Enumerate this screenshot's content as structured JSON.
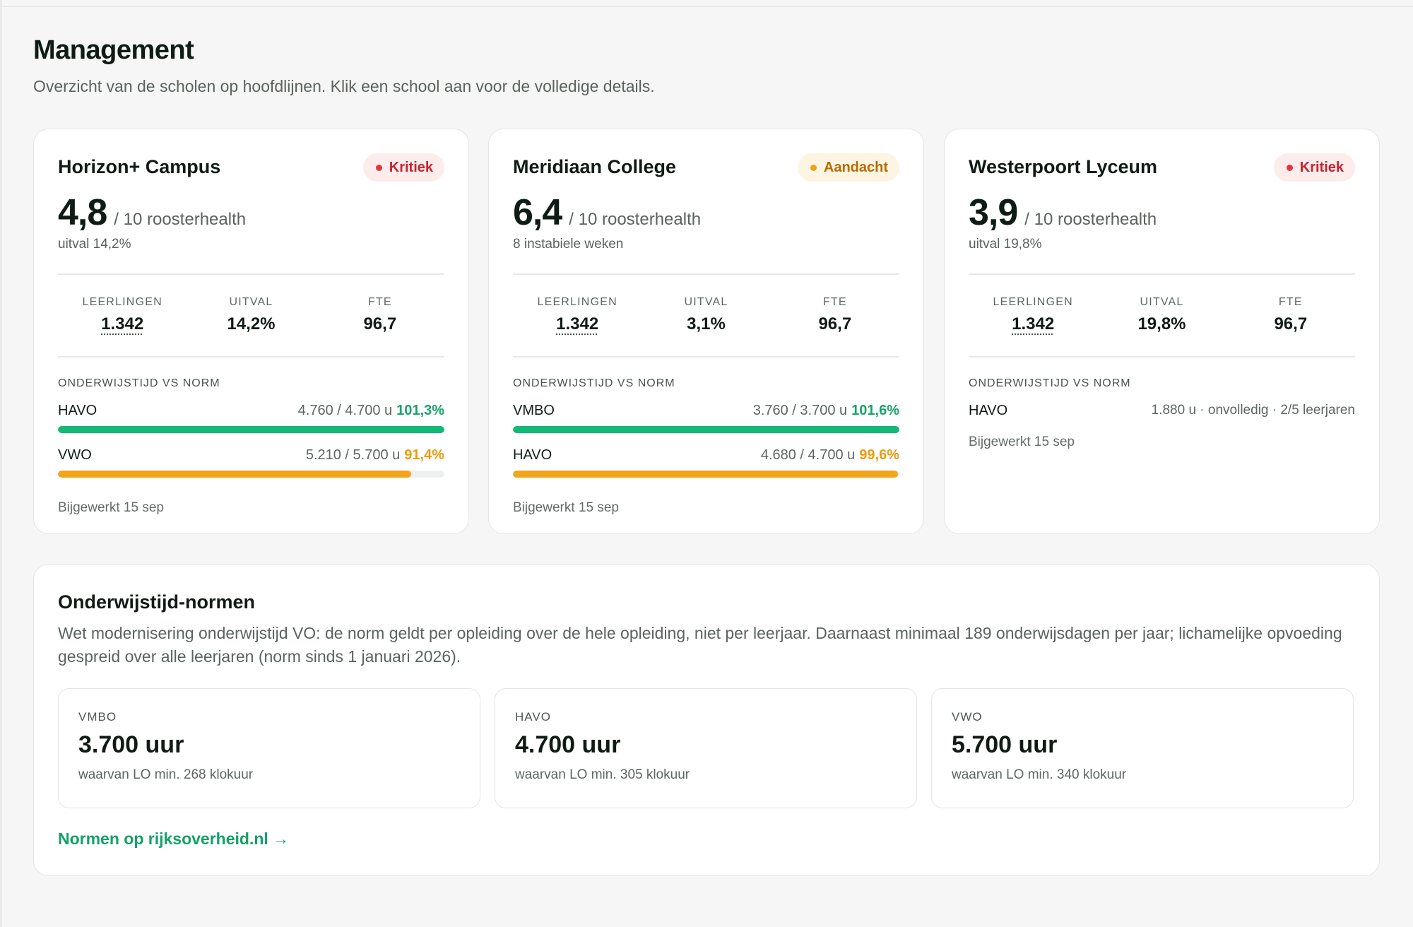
{
  "header": {
    "title": "Management",
    "subtitle": "Overzicht van de scholen op hoofdlijnen. Klik een school aan voor de volledige details."
  },
  "schools": [
    {
      "name": "Horizon+ Campus",
      "status": "Kritiek",
      "score": "4,8",
      "score_suffix": "/ 10 roosterhealth",
      "score_note": "uitval 14,2%",
      "stats": [
        {
          "label": "LEERLINGEN",
          "value": "1.342"
        },
        {
          "label": "UITVAL",
          "value": "14,2%"
        },
        {
          "label": "FTE",
          "value": "96,7"
        }
      ],
      "norm_title": "ONDERWIJSTIJD VS NORM",
      "norms": [
        {
          "name": "HAVO",
          "values": "4.760 / 4.700 u",
          "pct": "101,3%",
          "fill": 1.0
        },
        {
          "name": "VWO",
          "values": "5.210 / 5.700 u",
          "pct": "91,4%",
          "fill": 0.914
        }
      ],
      "updated": "Bijgewerkt 15 sep"
    },
    {
      "name": "Meridiaan College",
      "status": "Aandacht",
      "score": "6,4",
      "score_suffix": "/ 10 roosterhealth",
      "score_note": "8 instabiele weken",
      "stats": [
        {
          "label": "LEERLINGEN",
          "value": "1.342"
        },
        {
          "label": "UITVAL",
          "value": "3,1%"
        },
        {
          "label": "FTE",
          "value": "96,7"
        }
      ],
      "norm_title": "ONDERWIJSTIJD VS NORM",
      "norms": [
        {
          "name": "VMBO",
          "values": "3.760 / 3.700 u",
          "pct": "101,6%",
          "fill": 1.0
        },
        {
          "name": "HAVO",
          "values": "4.680 / 4.700 u",
          "pct": "99,6%",
          "fill": 0.996
        }
      ],
      "updated": "Bijgewerkt 15 sep"
    },
    {
      "name": "Westerpoort Lyceum",
      "status": "Kritiek",
      "score": "3,9",
      "score_suffix": "/ 10 roosterhealth",
      "score_note": "uitval 19,8%",
      "stats": [
        {
          "label": "LEERLINGEN",
          "value": "1.342"
        },
        {
          "label": "UITVAL",
          "value": "19,8%"
        },
        {
          "label": "FTE",
          "value": "96,7"
        }
      ],
      "norm_title": "ONDERWIJSTIJD VS NORM",
      "norms": [
        {
          "name": "HAVO",
          "values": "1.880 u · onvolledig · 2/5 leerjaren"
        }
      ],
      "updated": "Bijgewerkt 15 sep"
    }
  ],
  "normen": {
    "title": "Onderwijstijd-normen",
    "description": "Wet modernisering onderwijstijd VO: de norm geldt per opleiding over de hele opleiding, niet per leerjaar. Daarnaast minimaal 189 onderwijsdagen per jaar; lichamelijke opvoeding gespreid over alle leerjaren (norm sinds 1 januari 2026).",
    "boxes": [
      {
        "label": "VMBO",
        "value": "3.700 uur",
        "note": "waarvan LO min. 268 klokuur"
      },
      {
        "label": "HAVO",
        "value": "4.700 uur",
        "note": "waarvan LO min. 305 klokuur"
      },
      {
        "label": "VWO",
        "value": "5.700 uur",
        "note": "waarvan LO min. 340 klokuur"
      }
    ],
    "link": "Normen op rijksoverheid.nl →"
  },
  "colors": {
    "accent_green": "#14b877",
    "warning_orange": "#f3a41b",
    "critical_red": "#e03540"
  }
}
